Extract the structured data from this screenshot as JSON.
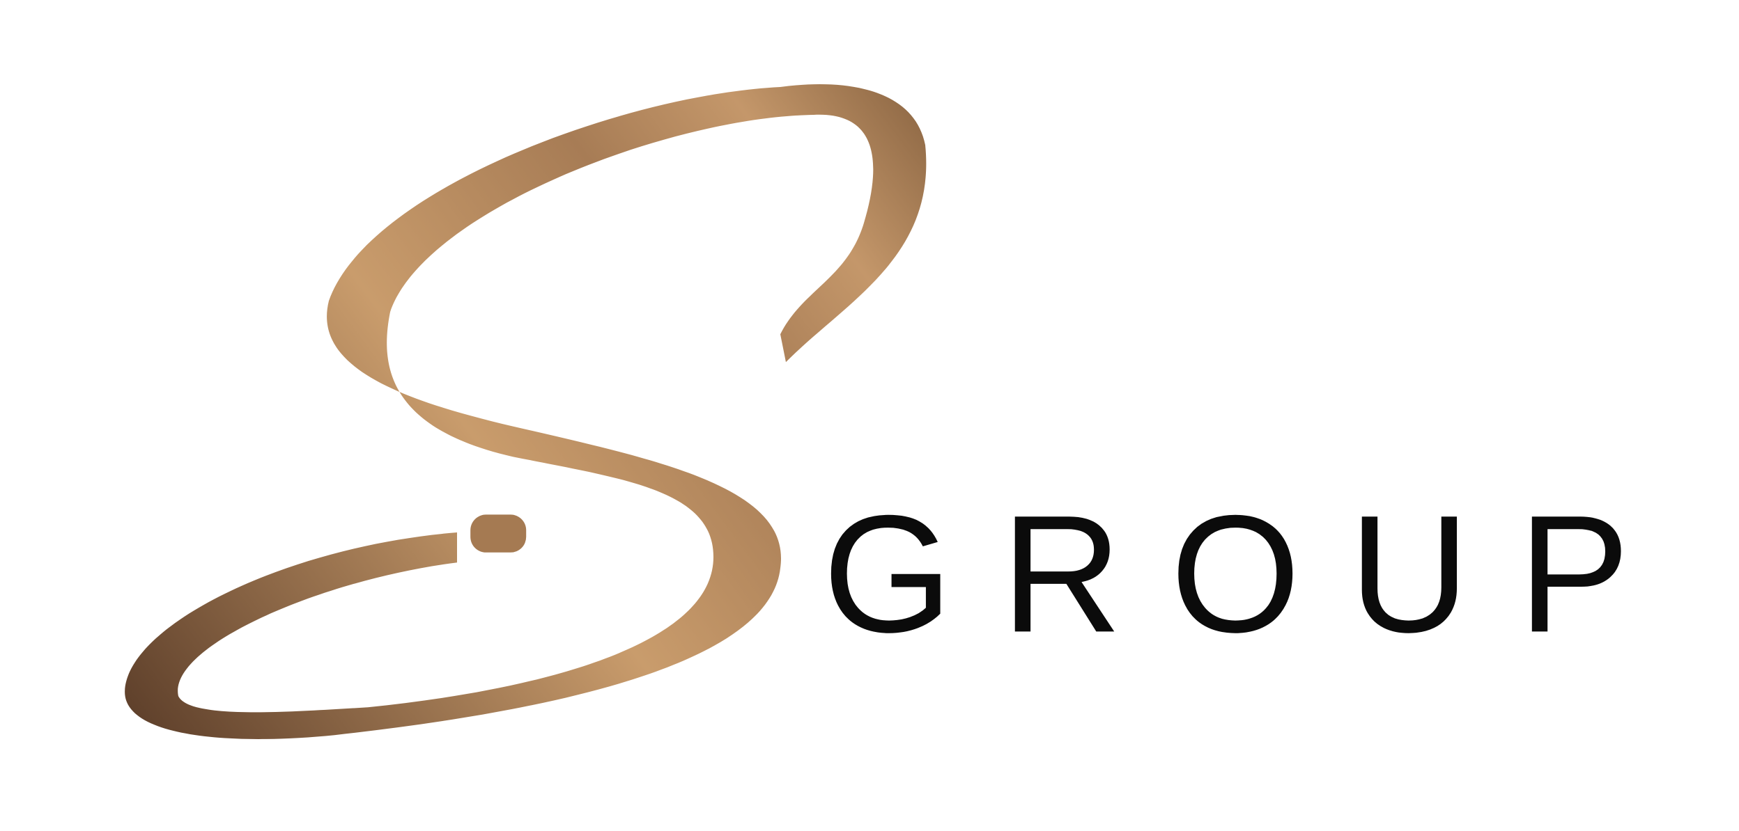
{
  "logo": {
    "text": "GROUP"
  }
}
